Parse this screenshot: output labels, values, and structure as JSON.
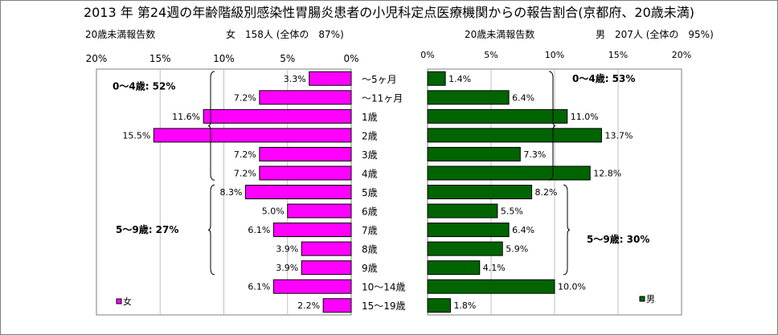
{
  "title": "2013 年 第24週の年齢階級別感染性胃腸炎患者の小児科定点医療機関からの報告割合(京都府、20歳未満)",
  "left_header": {
    "label": "20歳未満報告数",
    "summary": "女　158人 (全体の　87%)"
  },
  "right_header": {
    "label": "20歳未満報告数",
    "summary": "男　207人 (全体の　95%)"
  },
  "colors": {
    "female": "#ff00ff",
    "male": "#006400",
    "grid": "#bfbfbf"
  },
  "chart_data": [
    {
      "type": "bar",
      "orientation": "horizontal-reversed",
      "categories": [
        "～5ヶ月",
        "～11ヶ月",
        "1歳",
        "2歳",
        "3歳",
        "4歳",
        "5歳",
        "6歳",
        "7歳",
        "8歳",
        "9歳",
        "10～14歳",
        "15～19歳"
      ],
      "series": [
        {
          "name": "女",
          "values": [
            3.3,
            7.2,
            11.6,
            15.5,
            7.2,
            7.2,
            8.3,
            5.0,
            6.1,
            3.9,
            3.9,
            6.1,
            2.2
          ]
        }
      ],
      "value_labels": [
        "3.3%",
        "7.2%",
        "11.6%",
        "15.5%",
        "7.2%",
        "7.2%",
        "8.3%",
        "5.0%",
        "6.1%",
        "3.9%",
        "3.9%",
        "6.1%",
        "2.2%"
      ],
      "xlim": [
        0,
        20
      ],
      "ticks": [
        20,
        15,
        10,
        5,
        0
      ],
      "tick_labels": [
        "20%",
        "15%",
        "10%",
        "5%",
        "0%"
      ],
      "grid": true,
      "legend": "bottom-left",
      "annotations": [
        "0～4歳: 52%",
        "5～9歳: 27%"
      ]
    },
    {
      "type": "bar",
      "orientation": "horizontal",
      "categories": [
        "～5ヶ月",
        "～11ヶ月",
        "1歳",
        "2歳",
        "3歳",
        "4歳",
        "5歳",
        "6歳",
        "7歳",
        "8歳",
        "9歳",
        "10～14歳",
        "15～19歳"
      ],
      "series": [
        {
          "name": "男",
          "values": [
            1.4,
            6.4,
            11.0,
            13.7,
            7.3,
            12.8,
            8.2,
            5.5,
            6.4,
            5.9,
            4.1,
            10.0,
            1.8
          ]
        }
      ],
      "value_labels": [
        "1.4%",
        "6.4%",
        "11.0%",
        "13.7%",
        "7.3%",
        "12.8%",
        "8.2%",
        "5.5%",
        "6.4%",
        "5.9%",
        "4.1%",
        "10.0%",
        "1.8%"
      ],
      "xlim": [
        0,
        20
      ],
      "ticks": [
        0,
        5,
        10,
        15,
        20
      ],
      "tick_labels": [
        "0%",
        "5%",
        "10%",
        "15%",
        "20%"
      ],
      "grid": true,
      "legend": "bottom-right",
      "annotations": [
        "0～4歳: 53%",
        "5～9歳: 30%"
      ]
    }
  ]
}
